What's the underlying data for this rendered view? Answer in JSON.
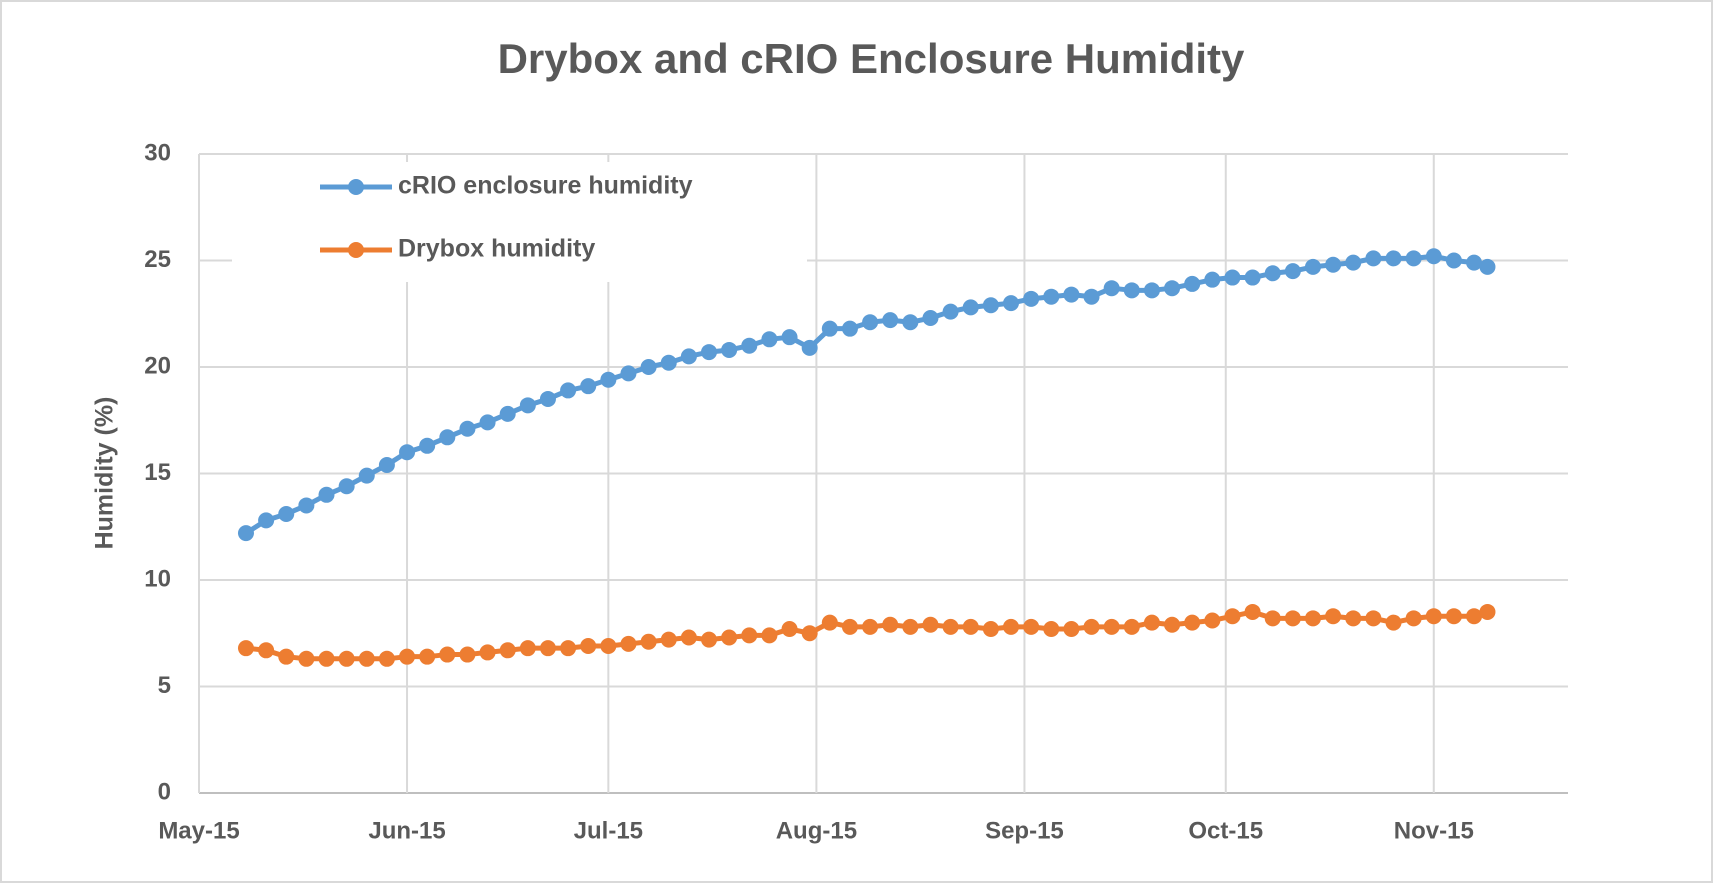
{
  "chart_data": {
    "type": "line",
    "title": "Drybox and cRIO Enclosure Humidity",
    "ylabel": "Humidity (%)",
    "x": [
      42132,
      42135,
      42138,
      42141,
      42144,
      42147,
      42150,
      42153,
      42156,
      42159,
      42162,
      42165,
      42168,
      42171,
      42174,
      42177,
      42180,
      42183,
      42186,
      42189,
      42192,
      42195,
      42198,
      42201,
      42204,
      42207,
      42210,
      42213,
      42216,
      42219,
      42222,
      42225,
      42228,
      42231,
      42234,
      42237,
      42240,
      42243,
      42246,
      42249,
      42252,
      42255,
      42258,
      42261,
      42264,
      42267,
      42270,
      42273,
      42276,
      42279,
      42282,
      42285,
      42288,
      42291,
      42294,
      42297,
      42300,
      42303,
      42306,
      42309,
      42312,
      42315,
      42317
    ],
    "series": [
      {
        "name": "cRIO enclosure humidity",
        "color": "#5b9bd5",
        "values": [
          12.2,
          12.8,
          13.1,
          13.5,
          14.0,
          14.4,
          14.9,
          15.4,
          16.0,
          16.3,
          16.7,
          17.1,
          17.4,
          17.8,
          18.2,
          18.5,
          18.9,
          19.1,
          19.4,
          19.7,
          20.0,
          20.2,
          20.5,
          20.7,
          20.8,
          21.0,
          21.3,
          21.4,
          20.9,
          21.8,
          21.8,
          22.1,
          22.2,
          22.1,
          22.3,
          22.6,
          22.8,
          22.9,
          23.0,
          23.2,
          23.3,
          23.4,
          23.3,
          23.7,
          23.6,
          23.6,
          23.7,
          23.9,
          24.1,
          24.2,
          24.2,
          24.4,
          24.5,
          24.7,
          24.8,
          24.9,
          25.1,
          25.1,
          25.1,
          25.2,
          25.0,
          24.9,
          24.7
        ]
      },
      {
        "name": "Drybox humidity",
        "color": "#ed7d31",
        "values": [
          6.8,
          6.7,
          6.4,
          6.3,
          6.3,
          6.3,
          6.3,
          6.3,
          6.4,
          6.4,
          6.5,
          6.5,
          6.6,
          6.7,
          6.8,
          6.8,
          6.8,
          6.9,
          6.9,
          7.0,
          7.1,
          7.2,
          7.3,
          7.2,
          7.3,
          7.4,
          7.4,
          7.7,
          7.5,
          8.0,
          7.8,
          7.8,
          7.9,
          7.8,
          7.9,
          7.8,
          7.8,
          7.7,
          7.8,
          7.8,
          7.7,
          7.7,
          7.8,
          7.8,
          7.8,
          8.0,
          7.9,
          8.0,
          8.1,
          8.3,
          8.5,
          8.2,
          8.2,
          8.2,
          8.3,
          8.2,
          8.2,
          8.0,
          8.2,
          8.3,
          8.3,
          8.3,
          8.5
        ]
      }
    ],
    "xlim": [
      42125,
      42329
    ],
    "xticks": [
      {
        "value": 42125,
        "label": "May-15"
      },
      {
        "value": 42156,
        "label": "Jun-15"
      },
      {
        "value": 42186,
        "label": "Jul-15"
      },
      {
        "value": 42217,
        "label": "Aug-15"
      },
      {
        "value": 42248,
        "label": "Sep-15"
      },
      {
        "value": 42278,
        "label": "Oct-15"
      },
      {
        "value": 42309,
        "label": "Nov-15"
      }
    ],
    "ylim": [
      0,
      30
    ],
    "yticks": [
      0,
      5,
      10,
      15,
      20,
      25,
      30
    ],
    "grid": true,
    "markers": true,
    "legend": "upper left"
  }
}
